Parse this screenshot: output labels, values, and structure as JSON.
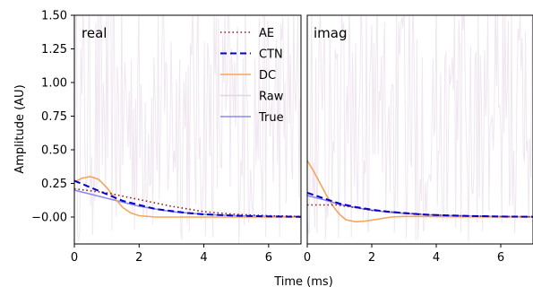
{
  "chart_data": {
    "type": "line",
    "xlabel": "Time (ms)",
    "ylabel": "Amplitude (AU)",
    "xlim": [
      0,
      7
    ],
    "ylim": [
      -0.2,
      1.5
    ],
    "x_ticks": [
      "0",
      "2",
      "4",
      "6"
    ],
    "y_ticks": [
      "−0.00",
      "0.25",
      "0.50",
      "0.75",
      "1.00",
      "1.25",
      "1.50"
    ],
    "y_tick_values": [
      0,
      0.25,
      0.5,
      0.75,
      1.0,
      1.25,
      1.5
    ],
    "x_tick_values": [
      0,
      2,
      4,
      6
    ],
    "legend_placement": "top-right of left panel",
    "legend": [
      {
        "name": "AE",
        "color": "#8b1a1a",
        "style": "dotted"
      },
      {
        "name": "CTN",
        "color": "#0000cc",
        "style": "dashed"
      },
      {
        "name": "DC",
        "color": "#f5a55c",
        "style": "solid"
      },
      {
        "name": "Raw",
        "color": "#e3d3e3",
        "style": "solid"
      },
      {
        "name": "True",
        "color": "#8a8af0",
        "style": "solid"
      }
    ],
    "panels": [
      {
        "title": "real",
        "series": [
          {
            "name": "AE",
            "x": [
              0,
              1,
              2,
              3,
              4,
              5,
              6,
              7
            ],
            "y": [
              0.21,
              0.18,
              0.13,
              0.08,
              0.04,
              0.02,
              0.01,
              0.005
            ]
          },
          {
            "name": "CTN",
            "x": [
              0,
              0.5,
              1,
              1.5,
              2,
              2.5,
              3,
              3.5,
              4,
              5,
              6,
              7
            ],
            "y": [
              0.27,
              0.22,
              0.17,
              0.12,
              0.09,
              0.06,
              0.045,
              0.03,
              0.02,
              0.01,
              0.005,
              0.002
            ]
          },
          {
            "name": "DC",
            "x": [
              0,
              0.25,
              0.5,
              0.75,
              1.0,
              1.25,
              1.5,
              1.75,
              2.0,
              2.5,
              3.0,
              4.0,
              5.0,
              6.0,
              7.0
            ],
            "y": [
              0.26,
              0.29,
              0.3,
              0.28,
              0.22,
              0.14,
              0.07,
              0.03,
              0.01,
              0.0,
              0.0,
              0.0,
              0.0,
              0.0,
              0.0
            ]
          },
          {
            "name": "True",
            "x": [
              0,
              0.5,
              1,
              1.5,
              2,
              2.5,
              3,
              3.5,
              4,
              5,
              6,
              7
            ],
            "y": [
              0.2,
              0.17,
              0.14,
              0.11,
              0.08,
              0.06,
              0.04,
              0.03,
              0.02,
              0.01,
              0.005,
              0.002
            ]
          }
        ]
      },
      {
        "title": "imag",
        "series": [
          {
            "name": "AE",
            "x": [
              0,
              0.5,
              0.9,
              1.5,
              2,
              3,
              4,
              5,
              6,
              7
            ],
            "y": [
              0.09,
              0.09,
              0.09,
              0.07,
              0.05,
              0.03,
              0.015,
              0.008,
              0.004,
              0.002
            ]
          },
          {
            "name": "CTN",
            "x": [
              0,
              0.5,
              1,
              1.5,
              2,
              2.5,
              3,
              3.5,
              4,
              5,
              6,
              7
            ],
            "y": [
              0.18,
              0.14,
              0.1,
              0.075,
              0.055,
              0.04,
              0.03,
              0.02,
              0.015,
              0.008,
              0.004,
              0.002
            ]
          },
          {
            "name": "DC",
            "x": [
              0,
              0.2,
              0.4,
              0.6,
              0.8,
              1.0,
              1.2,
              1.5,
              1.8,
              2.2,
              2.6,
              3.0,
              3.5,
              4.0,
              5.0,
              6.0,
              7.0
            ],
            "y": [
              0.42,
              0.34,
              0.25,
              0.16,
              0.08,
              0.02,
              -0.02,
              -0.035,
              -0.03,
              -0.015,
              0.0,
              0.005,
              0.005,
              0.003,
              0.001,
              0.0,
              0.0
            ]
          },
          {
            "name": "True",
            "x": [
              0,
              0.5,
              1,
              1.5,
              2,
              2.5,
              3,
              3.5,
              4,
              5,
              6,
              7
            ],
            "y": [
              0.16,
              0.13,
              0.095,
              0.07,
              0.05,
              0.037,
              0.027,
              0.02,
              0.014,
              0.007,
              0.004,
              0.002
            ]
          }
        ]
      }
    ]
  }
}
